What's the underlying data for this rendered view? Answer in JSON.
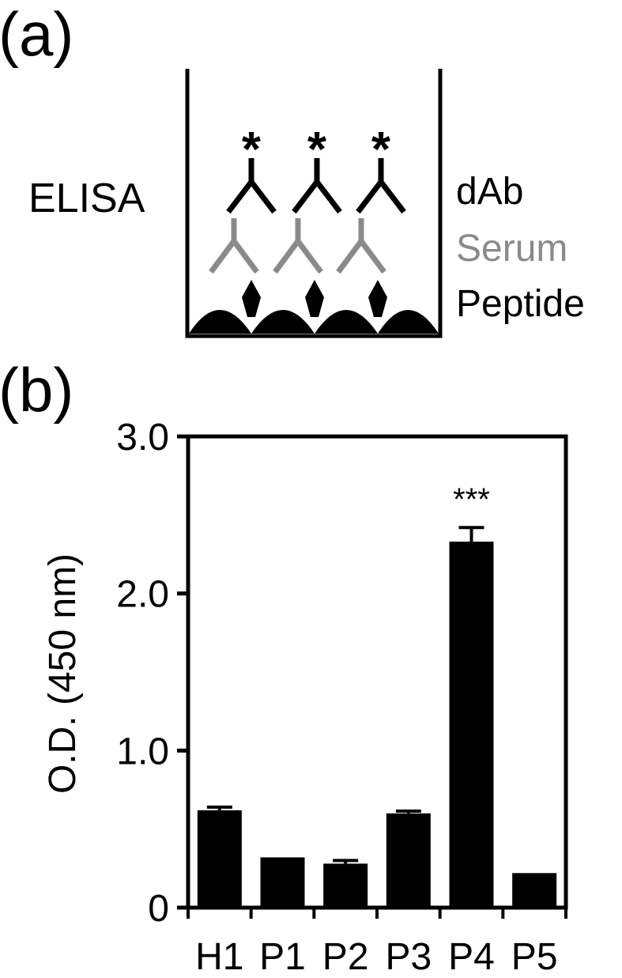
{
  "panel_a": {
    "label": "(a)",
    "assay_label": "ELISA",
    "layers": [
      "dAb",
      "Serum",
      "Peptide"
    ],
    "detection_marker": "*",
    "colors": {
      "black": "#000000",
      "serum": "#8a8a8a"
    }
  },
  "panel_b": {
    "label": "(b)"
  },
  "chart_data": {
    "type": "bar",
    "categories": [
      "H1",
      "P1",
      "P2",
      "P3",
      "P4",
      "P5"
    ],
    "values": [
      0.62,
      0.32,
      0.28,
      0.6,
      2.33,
      0.22
    ],
    "errors": [
      0.02,
      0.0,
      0.02,
      0.015,
      0.09,
      0.0
    ],
    "significance": [
      "",
      "",
      "",
      "",
      "***",
      ""
    ],
    "ylabel": "O.D. (450 nm)",
    "xlabel": "",
    "ylim": [
      0,
      3.0
    ],
    "yticks": [
      0,
      1.0,
      2.0,
      3.0
    ],
    "ytick_labels": [
      "0",
      "1.0",
      "2.0",
      "3.0"
    ],
    "grid": false,
    "bar_color": "#000000"
  }
}
